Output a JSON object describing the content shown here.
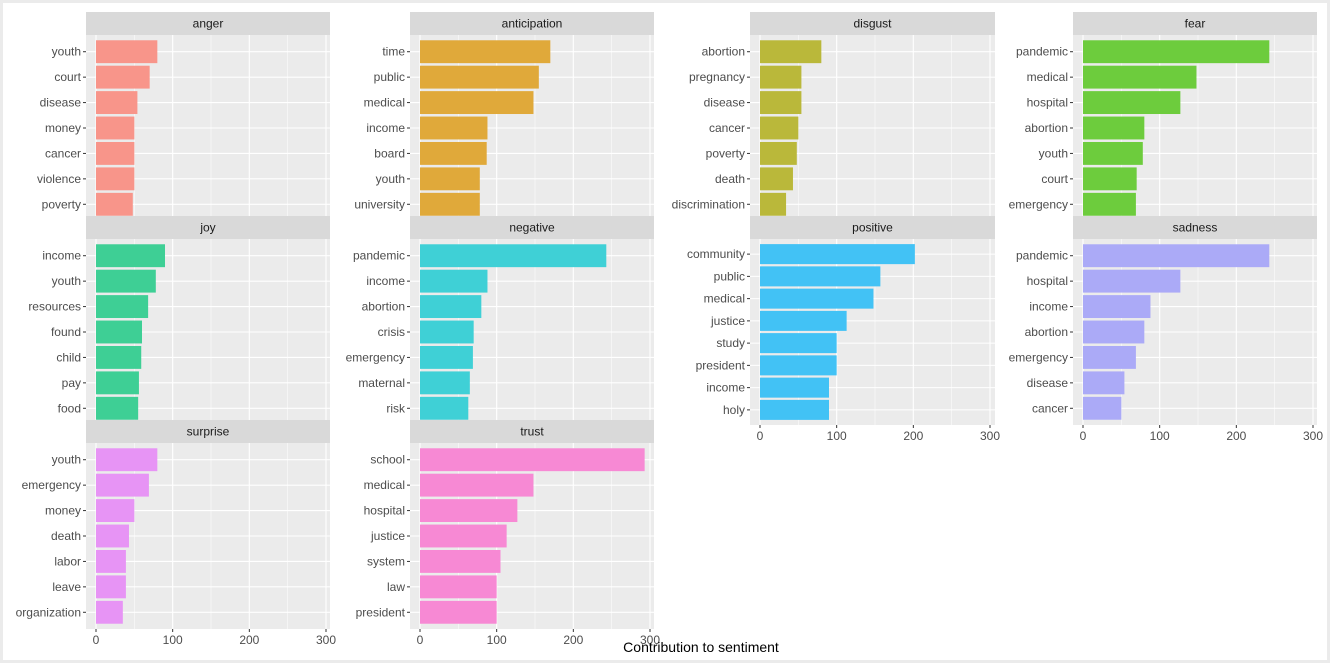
{
  "chart_data": {
    "type": "bar",
    "orientation": "horizontal",
    "xlabel": "Contribution to sentiment",
    "xlim": [
      0,
      300
    ],
    "xticks": [
      "0",
      "100",
      "200",
      "300"
    ],
    "grid": true,
    "panels": [
      {
        "title": "anger",
        "color": "#f8958a",
        "categories": [
          "youth",
          "court",
          "disease",
          "money",
          "cancer",
          "violence",
          "poverty"
        ],
        "values": [
          80,
          70,
          54,
          50,
          50,
          50,
          48
        ]
      },
      {
        "title": "anticipation",
        "color": "#e0a93a",
        "categories": [
          "time",
          "public",
          "medical",
          "income",
          "board",
          "youth",
          "university"
        ],
        "values": [
          170,
          155,
          148,
          88,
          87,
          78,
          78
        ]
      },
      {
        "title": "disgust",
        "color": "#bab83a",
        "categories": [
          "abortion",
          "pregnancy",
          "disease",
          "cancer",
          "poverty",
          "death",
          "discrimination"
        ],
        "values": [
          80,
          54,
          54,
          50,
          48,
          43,
          34
        ]
      },
      {
        "title": "fear",
        "color": "#6dcc3d",
        "categories": [
          "pandemic",
          "medical",
          "hospital",
          "abortion",
          "youth",
          "court",
          "emergency"
        ],
        "values": [
          243,
          148,
          127,
          80,
          78,
          70,
          69
        ]
      },
      {
        "title": "joy",
        "color": "#3ecf95",
        "categories": [
          "income",
          "youth",
          "resources",
          "found",
          "child",
          "pay",
          "food"
        ],
        "values": [
          90,
          78,
          68,
          60,
          59,
          56,
          55
        ]
      },
      {
        "title": "negative",
        "color": "#3fd0d6",
        "categories": [
          "pandemic",
          "income",
          "abortion",
          "crisis",
          "emergency",
          "maternal",
          "risk"
        ],
        "values": [
          243,
          88,
          80,
          70,
          69,
          65,
          63
        ]
      },
      {
        "title": "positive",
        "color": "#42c2f5",
        "categories": [
          "community",
          "public",
          "medical",
          "justice",
          "study",
          "president",
          "income",
          "holy"
        ],
        "values": [
          202,
          157,
          148,
          113,
          100,
          100,
          90,
          90
        ]
      },
      {
        "title": "sadness",
        "color": "#abaaf7",
        "categories": [
          "pandemic",
          "hospital",
          "income",
          "abortion",
          "emergency",
          "disease",
          "cancer"
        ],
        "values": [
          243,
          127,
          88,
          80,
          69,
          54,
          50
        ]
      },
      {
        "title": "surprise",
        "color": "#e794f5",
        "categories": [
          "youth",
          "emergency",
          "money",
          "death",
          "labor",
          "leave",
          "organization"
        ],
        "values": [
          80,
          69,
          50,
          43,
          39,
          39,
          35
        ]
      },
      {
        "title": "trust",
        "color": "#f789d4",
        "categories": [
          "school",
          "medical",
          "hospital",
          "justice",
          "system",
          "law",
          "president"
        ],
        "values": [
          293,
          148,
          127,
          113,
          105,
          100,
          100
        ]
      }
    ]
  }
}
